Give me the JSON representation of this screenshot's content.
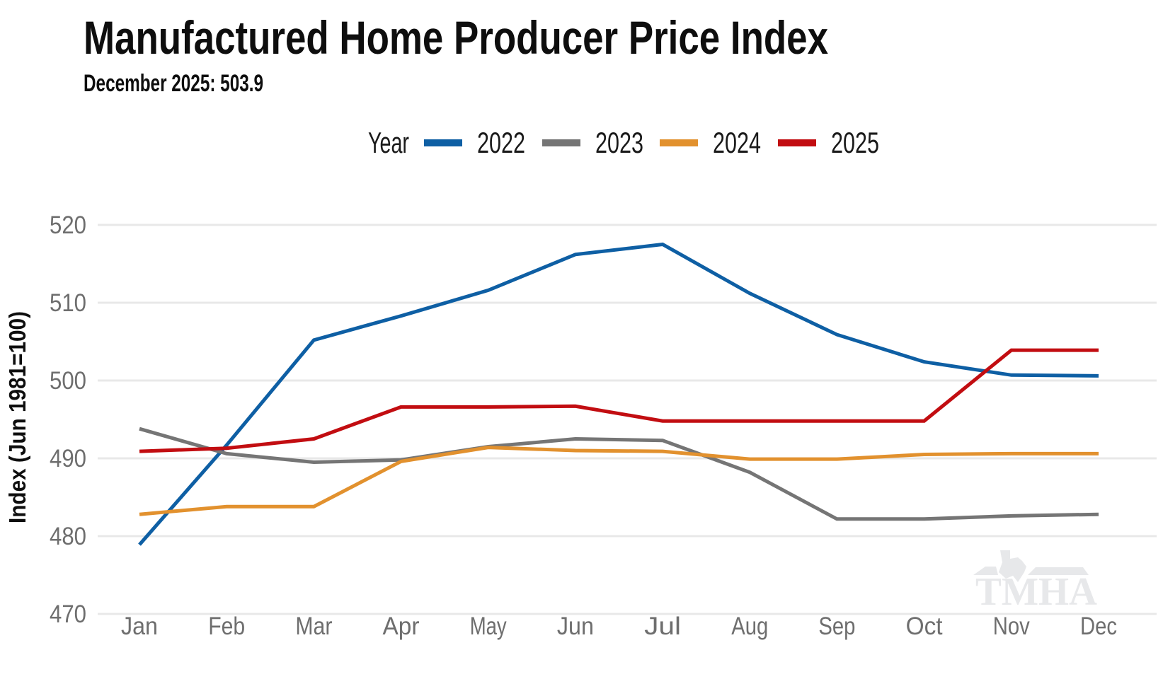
{
  "chart_data": {
    "type": "line",
    "title": "Manufactured Home Producer Price Index",
    "subtitle": "December 2025: 503.9",
    "legend_title": "Year",
    "categories": [
      "Jan",
      "Feb",
      "Mar",
      "Apr",
      "May",
      "Jun",
      "Jul",
      "Aug",
      "Sep",
      "Oct",
      "Nov",
      "Dec"
    ],
    "xlabel": "",
    "ylabel": "Index (Jun 1981=100)",
    "ylim": [
      470,
      520
    ],
    "yticks": [
      470,
      480,
      490,
      500,
      510,
      520
    ],
    "grid": "horizontal",
    "legend_position": "top",
    "gridline_color": "#e8e8e8",
    "tick_color": "#6e6e6e",
    "series": [
      {
        "name": "2022",
        "color": "#0e5fa4",
        "values": [
          478.9,
          491.7,
          505.2,
          508.3,
          511.6,
          516.2,
          517.5,
          511.2,
          505.9,
          502.4,
          500.7,
          500.6
        ]
      },
      {
        "name": "2023",
        "color": "#757575",
        "values": [
          493.8,
          490.6,
          489.5,
          489.8,
          491.5,
          492.5,
          492.3,
          488.2,
          482.2,
          482.2,
          482.6,
          482.8
        ]
      },
      {
        "name": "2024",
        "color": "#e2912e",
        "values": [
          482.8,
          483.8,
          483.8,
          489.6,
          491.4,
          491.0,
          490.9,
          489.9,
          489.9,
          490.5,
          490.6,
          490.6
        ]
      },
      {
        "name": "2025",
        "color": "#c20d11",
        "values": [
          490.9,
          491.3,
          492.5,
          496.6,
          496.6,
          496.7,
          494.8,
          494.8,
          494.8,
          494.8,
          503.9,
          503.9
        ]
      }
    ]
  },
  "watermark": {
    "text": "TMHA",
    "color": "#e7e8ea"
  }
}
